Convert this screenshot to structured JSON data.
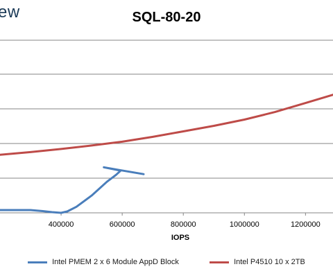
{
  "brand": {
    "text": "ew"
  },
  "chart_data": {
    "type": "line",
    "title": "SQL-80-20",
    "xlabel": "IOPS",
    "ylabel": "",
    "x_ticks": [
      400000,
      600000,
      800000,
      1000000,
      1200000
    ],
    "x_tick_labels": [
      "400000",
      "600000",
      "800000",
      "1000000",
      "1200000"
    ],
    "xlim": [
      200000,
      1290000
    ],
    "ylim": [
      0,
      1
    ],
    "grid": true,
    "legend_position": "bottom",
    "series": [
      {
        "name": "Intel PMEM 2 x 6 Module AppD Block",
        "color": "#4a7ebb",
        "points": [
          {
            "x": 200000,
            "y": 0.016
          },
          {
            "x": 250000,
            "y": 0.016
          },
          {
            "x": 300000,
            "y": 0.016
          },
          {
            "x": 340000,
            "y": 0.01
          },
          {
            "x": 370000,
            "y": 0.004
          },
          {
            "x": 400000,
            "y": 0.0
          },
          {
            "x": 420000,
            "y": 0.008
          },
          {
            "x": 450000,
            "y": 0.035
          },
          {
            "x": 500000,
            "y": 0.1
          },
          {
            "x": 550000,
            "y": 0.18
          },
          {
            "x": 580000,
            "y": 0.22
          },
          {
            "x": 595000,
            "y": 0.244
          },
          {
            "x": 540000,
            "y": 0.264
          },
          {
            "x": 590000,
            "y": 0.248
          },
          {
            "x": 670000,
            "y": 0.224
          }
        ]
      },
      {
        "name": "Intel P4510 10 x 2TB",
        "color": "#be4b48",
        "points": [
          {
            "x": 200000,
            "y": 0.336
          },
          {
            "x": 300000,
            "y": 0.352
          },
          {
            "x": 400000,
            "y": 0.37
          },
          {
            "x": 500000,
            "y": 0.39
          },
          {
            "x": 600000,
            "y": 0.412
          },
          {
            "x": 700000,
            "y": 0.44
          },
          {
            "x": 800000,
            "y": 0.472
          },
          {
            "x": 900000,
            "y": 0.504
          },
          {
            "x": 1000000,
            "y": 0.54
          },
          {
            "x": 1100000,
            "y": 0.584
          },
          {
            "x": 1200000,
            "y": 0.636
          },
          {
            "x": 1290000,
            "y": 0.684
          }
        ]
      }
    ]
  }
}
